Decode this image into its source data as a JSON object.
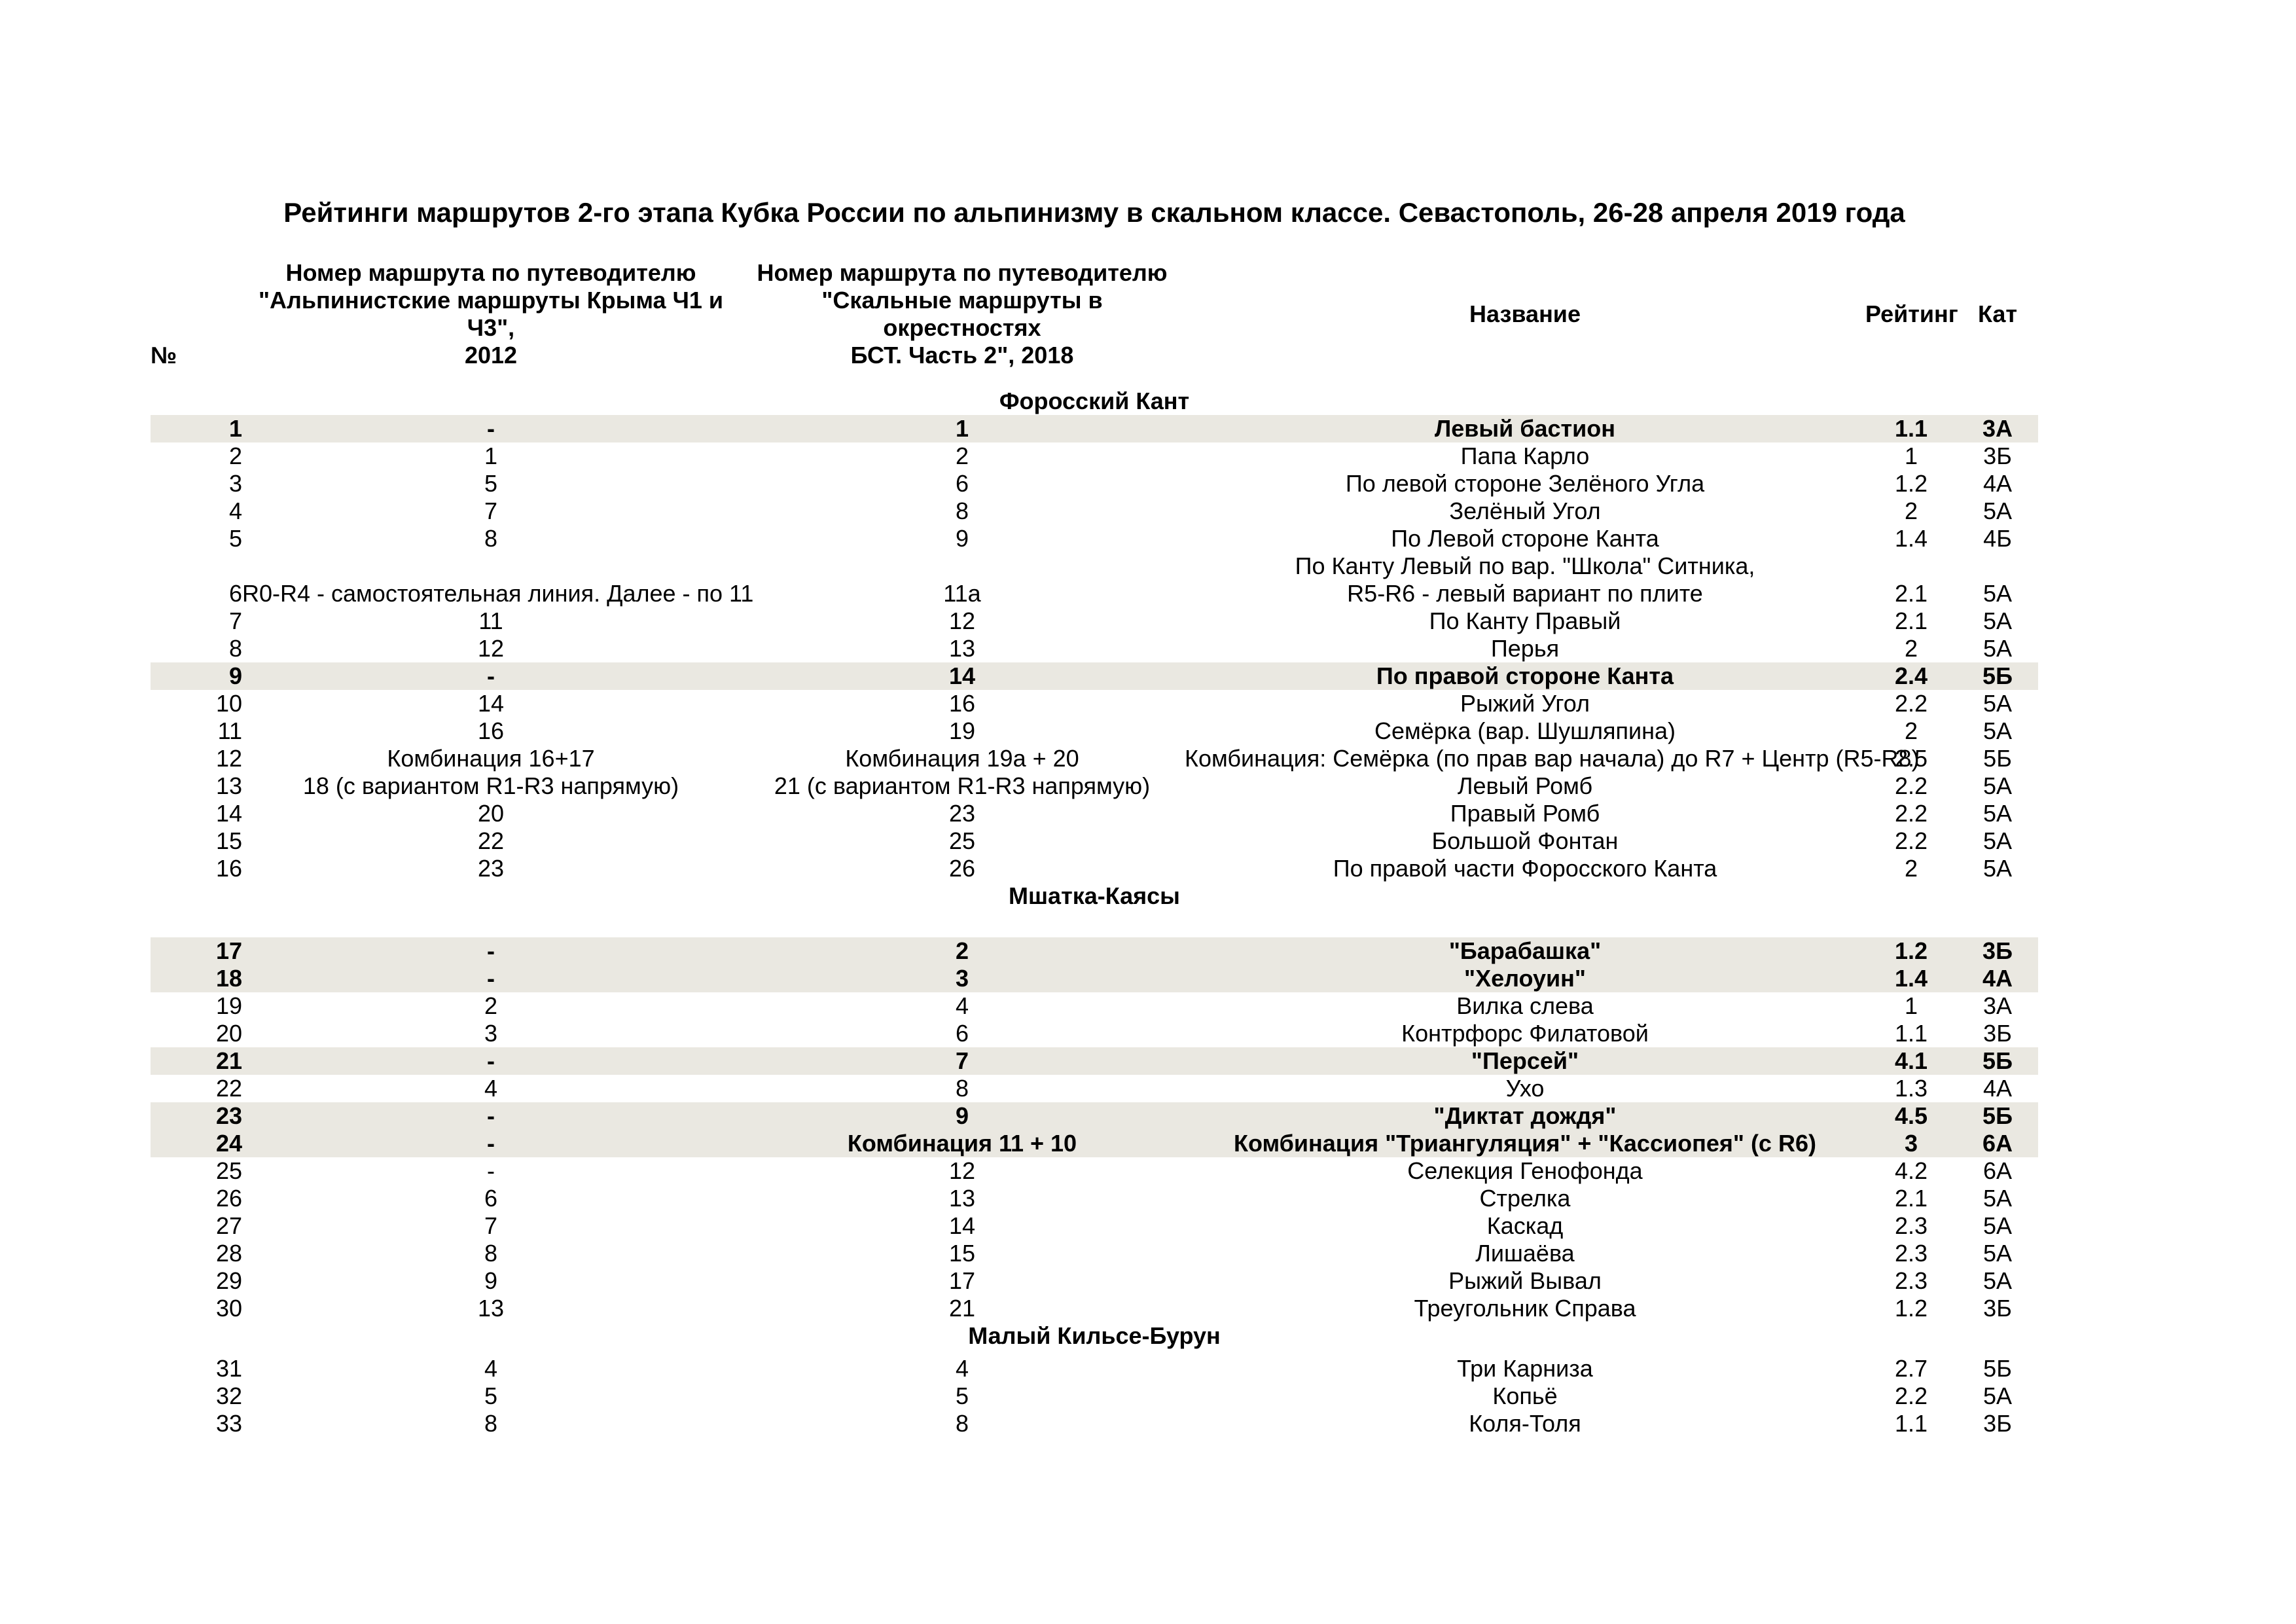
{
  "title": "Рейтинги маршрутов 2-го этапа Кубка России по альпинизму в скальном классе. Севастополь, 26-28 апреля 2019 года",
  "colors": {
    "highlight": "#eae8e1",
    "text": "#000000",
    "background": "#ffffff"
  },
  "table": {
    "headers": {
      "num": "№",
      "guide2012": "Номер маршрута по путеводителю\n\"Альпинистские маршруты Крыма Ч1 и Ч3\",\n2012",
      "guide2018": "Номер маршрута по путеводителю\n\"Скальные маршруты в окрестностях\nБСТ. Часть 2\", 2018",
      "name": "Название",
      "rating": "Рейтинг",
      "category": "Кат"
    },
    "sections": [
      {
        "title": "Форосский Кант",
        "rows": [
          {
            "num": "1",
            "g2012": "-",
            "g2018": "1",
            "name": "Левый бастион",
            "rating": "1.1",
            "cat": "3А",
            "highlighted": true
          },
          {
            "num": "2",
            "g2012": "1",
            "g2018": "2",
            "name": "Папа Карло",
            "rating": "1",
            "cat": "3Б",
            "highlighted": false
          },
          {
            "num": "3",
            "g2012": "5",
            "g2018": "6",
            "name": "По левой стороне Зелёного Угла",
            "rating": "1.2",
            "cat": "4А",
            "highlighted": false
          },
          {
            "num": "4",
            "g2012": "7",
            "g2018": "8",
            "name": "Зелёный Угол",
            "rating": "2",
            "cat": "5А",
            "highlighted": false
          },
          {
            "num": "5",
            "g2012": "8",
            "g2018": "9",
            "name": "По Левой стороне Канта",
            "rating": "1.4",
            "cat": "4Б",
            "highlighted": false
          },
          {
            "num": "6",
            "g2012": "R0-R4 - самостоятельная линия. Далее - по 11",
            "g2018": "11а",
            "name": "По Канту Левый по вар. \"Школа\" Ситника,",
            "name2": "R5-R6 - левый вариант по плите",
            "rating": "2.1",
            "cat": "5А",
            "highlighted": false
          },
          {
            "num": "7",
            "g2012": "11",
            "g2018": "12",
            "name": "По Канту Правый",
            "rating": "2.1",
            "cat": "5А",
            "highlighted": false
          },
          {
            "num": "8",
            "g2012": "12",
            "g2018": "13",
            "name": "Перья",
            "rating": "2",
            "cat": "5А",
            "highlighted": false
          },
          {
            "num": "9",
            "g2012": "-",
            "g2018": "14",
            "name": "По правой стороне Канта",
            "rating": "2.4",
            "cat": "5Б",
            "highlighted": true
          },
          {
            "num": "10",
            "g2012": "14",
            "g2018": "16",
            "name": "Рыжий Угол",
            "rating": "2.2",
            "cat": "5А",
            "highlighted": false
          },
          {
            "num": "11",
            "g2012": "16",
            "g2018": "19",
            "name": "Семёрка (вар. Шушляпина)",
            "rating": "2",
            "cat": "5А",
            "highlighted": false
          },
          {
            "num": "12",
            "g2012": "Комбинация 16+17",
            "g2018": "Комбинация 19а + 20",
            "name": "Комбинация: Семёрка (по прав вар начала) до R7 + Центр (R5-R8)",
            "rating": "2.5",
            "cat": "5Б",
            "highlighted": false
          },
          {
            "num": "13",
            "g2012": "18 (с вариантом R1-R3 напрямую)",
            "g2018": "21 (с вариантом R1-R3 напрямую)",
            "name": "Левый Ромб",
            "rating": "2.2",
            "cat": "5А",
            "highlighted": false
          },
          {
            "num": "14",
            "g2012": "20",
            "g2018": "23",
            "name": "Правый Ромб",
            "rating": "2.2",
            "cat": "5А",
            "highlighted": false
          },
          {
            "num": "15",
            "g2012": "22",
            "g2018": "25",
            "name": "Большой Фонтан",
            "rating": "2.2",
            "cat": "5А",
            "highlighted": false
          },
          {
            "num": "16",
            "g2012": "23",
            "g2018": "26",
            "name": "По правой части Форосского Канта",
            "rating": "2",
            "cat": "5А",
            "highlighted": false
          }
        ]
      },
      {
        "title": "Мшатка-Каясы",
        "rows": [
          {
            "num": "17",
            "g2012": "-",
            "g2018": "2",
            "name": "\"Барабашка\"",
            "rating": "1.2",
            "cat": "3Б",
            "highlighted": true
          },
          {
            "num": "18",
            "g2012": "-",
            "g2018": "3",
            "name": "\"Хелоуин\"",
            "rating": "1.4",
            "cat": "4А",
            "highlighted": true
          },
          {
            "num": "19",
            "g2012": "2",
            "g2018": "4",
            "name": "Вилка слева",
            "rating": "1",
            "cat": "3А",
            "highlighted": false
          },
          {
            "num": "20",
            "g2012": "3",
            "g2018": "6",
            "name": "Контрфорс Филатовой",
            "rating": "1.1",
            "cat": "3Б",
            "highlighted": false
          },
          {
            "num": "21",
            "g2012": "-",
            "g2018": "7",
            "name": "\"Персей\"",
            "rating": "4.1",
            "cat": "5Б",
            "highlighted": true
          },
          {
            "num": "22",
            "g2012": "4",
            "g2018": "8",
            "name": "Ухо",
            "rating": "1.3",
            "cat": "4А",
            "highlighted": false
          },
          {
            "num": "23",
            "g2012": "-",
            "g2018": "9",
            "name": "\"Диктат дождя\"",
            "rating": "4.5",
            "cat": "5Б",
            "highlighted": true
          },
          {
            "num": "24",
            "g2012": "-",
            "g2018": "Комбинация 11 + 10",
            "name": "Комбинация \"Триангуляция\" + \"Кассиопея\" (с R6)",
            "rating": "3",
            "cat": "6А",
            "highlighted": true
          },
          {
            "num": "25",
            "g2012": "-",
            "g2018": "12",
            "name": "Селекция Генофонда",
            "rating": "4.2",
            "cat": "6А",
            "highlighted": false
          },
          {
            "num": "26",
            "g2012": "6",
            "g2018": "13",
            "name": "Стрелка",
            "rating": "2.1",
            "cat": "5А",
            "highlighted": false
          },
          {
            "num": "27",
            "g2012": "7",
            "g2018": "14",
            "name": "Каскад",
            "rating": "2.3",
            "cat": "5А",
            "highlighted": false
          },
          {
            "num": "28",
            "g2012": "8",
            "g2018": "15",
            "name": "Лишаёва",
            "rating": "2.3",
            "cat": "5А",
            "highlighted": false
          },
          {
            "num": "29",
            "g2012": "9",
            "g2018": "17",
            "name": "Рыжий Вывал",
            "rating": "2.3",
            "cat": "5А",
            "highlighted": false
          },
          {
            "num": "30",
            "g2012": "13",
            "g2018": "21",
            "name": "Треугольник Справа",
            "rating": "1.2",
            "cat": "3Б",
            "highlighted": false
          }
        ]
      },
      {
        "title": "Малый Кильсе-Бурун",
        "rows": [
          {
            "num": "31",
            "g2012": "4",
            "g2018": "4",
            "name": "Три Карниза",
            "rating": "2.7",
            "cat": "5Б",
            "highlighted": false
          },
          {
            "num": "32",
            "g2012": "5",
            "g2018": "5",
            "name": "Копьё",
            "rating": "2.2",
            "cat": "5А",
            "highlighted": false
          },
          {
            "num": "33",
            "g2012": "8",
            "g2018": "8",
            "name": "Коля-Толя",
            "rating": "1.1",
            "cat": "3Б",
            "highlighted": false
          }
        ]
      }
    ]
  }
}
